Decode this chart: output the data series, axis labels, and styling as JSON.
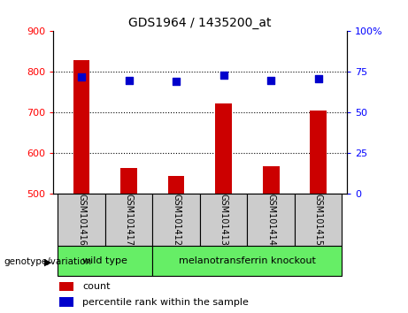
{
  "title": "GDS1964 / 1435200_at",
  "samples": [
    "GSM101416",
    "GSM101417",
    "GSM101412",
    "GSM101413",
    "GSM101414",
    "GSM101415"
  ],
  "counts": [
    830,
    565,
    545,
    722,
    568,
    705
  ],
  "percentile_ranks": [
    72,
    70,
    69,
    73,
    70,
    71
  ],
  "ylim_left": [
    500,
    900
  ],
  "ylim_right": [
    0,
    100
  ],
  "left_ticks": [
    500,
    600,
    700,
    800,
    900
  ],
  "right_ticks": [
    0,
    25,
    50,
    75,
    100
  ],
  "right_tick_labels": [
    "0",
    "25",
    "50",
    "75",
    "100%"
  ],
  "bar_color": "#cc0000",
  "scatter_color": "#0000cc",
  "groups": [
    {
      "label": "wild type",
      "start": 0,
      "end": 2
    },
    {
      "label": "melanotransferrin knockout",
      "start": 2,
      "end": 6
    }
  ],
  "group_color": "#66ee66",
  "label_area_color": "#cccccc",
  "genotype_label": "genotype/variation",
  "legend_count_label": "count",
  "legend_pct_label": "percentile rank within the sample"
}
